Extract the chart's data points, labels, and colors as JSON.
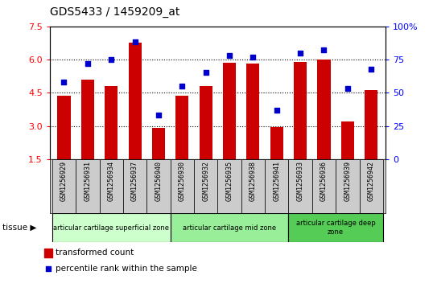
{
  "title": "GDS5433 / 1459209_at",
  "samples": [
    "GSM1256929",
    "GSM1256931",
    "GSM1256934",
    "GSM1256937",
    "GSM1256940",
    "GSM1256930",
    "GSM1256932",
    "GSM1256935",
    "GSM1256938",
    "GSM1256941",
    "GSM1256933",
    "GSM1256936",
    "GSM1256939",
    "GSM1256942"
  ],
  "bar_values": [
    4.35,
    5.1,
    4.8,
    6.75,
    2.9,
    4.35,
    4.8,
    5.85,
    5.8,
    2.95,
    5.9,
    6.0,
    3.2,
    4.6
  ],
  "scatter_values": [
    58,
    72,
    75,
    88,
    33,
    55,
    65,
    78,
    77,
    37,
    80,
    82,
    53,
    68
  ],
  "bar_color": "#cc0000",
  "scatter_color": "#0000cc",
  "ylim_left": [
    1.5,
    7.5
  ],
  "ylim_right": [
    0,
    100
  ],
  "yticks_left": [
    1.5,
    3.0,
    4.5,
    6.0,
    7.5
  ],
  "yticks_right": [
    0,
    25,
    50,
    75,
    100
  ],
  "yticklabels_right": [
    "0",
    "25",
    "50",
    "75",
    "100%"
  ],
  "hlines": [
    3.0,
    4.5,
    6.0
  ],
  "groups": [
    {
      "label": "articular cartilage superficial zone",
      "start": 0,
      "end": 5,
      "color": "#ccffcc"
    },
    {
      "label": "articular cartilage mid zone",
      "start": 5,
      "end": 10,
      "color": "#99ee99"
    },
    {
      "label": "articular cartilage deep\nzone",
      "start": 10,
      "end": 14,
      "color": "#55cc55"
    }
  ],
  "tissue_label": "tissue",
  "legend_bar_label": "transformed count",
  "legend_scatter_label": "percentile rank within the sample",
  "xtick_bg_color": "#cccccc",
  "plot_bg": "#ffffff"
}
